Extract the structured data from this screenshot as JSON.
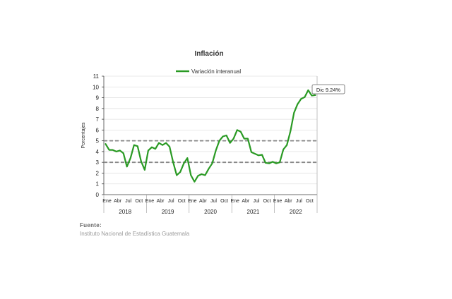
{
  "chart_data": {
    "type": "line",
    "title": "Inflación",
    "ylabel": "Porcentajes",
    "ylim": [
      0,
      11
    ],
    "yticks": [
      0,
      1,
      2,
      3,
      4,
      5,
      6,
      7,
      8,
      9,
      10,
      11
    ],
    "month_labels": [
      "Ene",
      "Abr",
      "Jul",
      "Oct"
    ],
    "years": [
      "2018",
      "2019",
      "2020",
      "2021",
      "2022"
    ],
    "series": [
      {
        "name": "Variación interanual",
        "color": "#2a9a24",
        "x": [
          "2018-01",
          "2018-02",
          "2018-03",
          "2018-04",
          "2018-05",
          "2018-06",
          "2018-07",
          "2018-08",
          "2018-09",
          "2018-10",
          "2018-11",
          "2018-12",
          "2019-01",
          "2019-02",
          "2019-03",
          "2019-04",
          "2019-05",
          "2019-06",
          "2019-07",
          "2019-08",
          "2019-09",
          "2019-10",
          "2019-11",
          "2019-12",
          "2020-01",
          "2020-02",
          "2020-03",
          "2020-04",
          "2020-05",
          "2020-06",
          "2020-07",
          "2020-08",
          "2020-09",
          "2020-10",
          "2020-11",
          "2020-12",
          "2021-01",
          "2021-02",
          "2021-03",
          "2021-04",
          "2021-05",
          "2021-06",
          "2021-07",
          "2021-08",
          "2021-09",
          "2021-10",
          "2021-11",
          "2021-12",
          "2022-01",
          "2022-02",
          "2022-03",
          "2022-04",
          "2022-05",
          "2022-06",
          "2022-07",
          "2022-08",
          "2022-09",
          "2022-10",
          "2022-11",
          "2022-12"
        ],
        "values": [
          4.7,
          4.15,
          4.15,
          4.0,
          4.1,
          3.85,
          2.6,
          3.4,
          4.6,
          4.5,
          3.1,
          2.3,
          4.1,
          4.4,
          4.25,
          4.8,
          4.6,
          4.8,
          4.45,
          3.0,
          1.8,
          2.1,
          2.9,
          3.4,
          1.8,
          1.2,
          1.75,
          1.9,
          1.8,
          2.4,
          2.9,
          4.1,
          5.0,
          5.4,
          5.5,
          4.8,
          5.2,
          6.0,
          5.85,
          5.2,
          5.2,
          3.95,
          3.8,
          3.65,
          3.7,
          2.95,
          2.9,
          3.05,
          2.9,
          3.0,
          4.2,
          4.6,
          5.9,
          7.6,
          8.4,
          8.9,
          9.05,
          9.7,
          9.2,
          9.24
        ]
      }
    ],
    "reference_lines": [
      {
        "value": 5,
        "style": "dashed",
        "color": "#888888"
      },
      {
        "value": 3,
        "style": "dashed",
        "color": "#888888"
      }
    ],
    "annotation": {
      "text": "Dic 9.24%",
      "point": "2022-12"
    },
    "grid": true,
    "legend": "top-center"
  },
  "source": {
    "label": "Fuente:",
    "text": "Instituto Nacional de Estadística Guatemala"
  }
}
